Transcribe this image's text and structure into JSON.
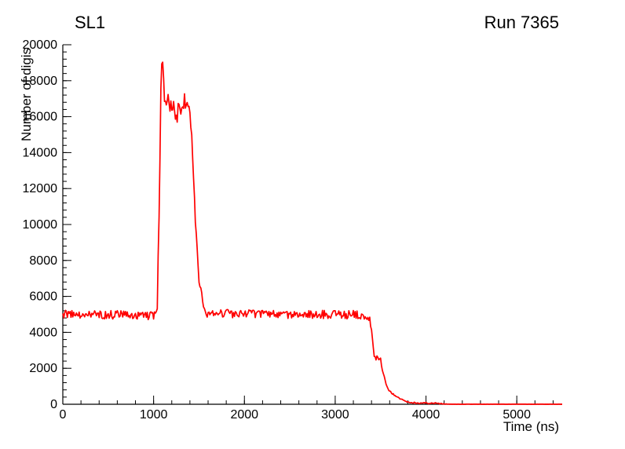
{
  "chart_data": {
    "type": "line",
    "title": "SL1",
    "annotation": "Run 7365",
    "xlabel": "Time (ns)",
    "ylabel": "Number of digis",
    "xlim": [
      0,
      5500
    ],
    "ylim": [
      0,
      20000
    ],
    "x_major_ticks": [
      0,
      1000,
      2000,
      3000,
      4000,
      5000
    ],
    "y_major_ticks": [
      0,
      2000,
      4000,
      6000,
      8000,
      10000,
      12000,
      14000,
      16000,
      18000,
      20000
    ],
    "x_minor_step": 200,
    "y_minor_step": 400,
    "grid": false,
    "legend": false,
    "line_color": "#ff0000",
    "axis_color": "#000000",
    "background_color": "#ffffff",
    "noise_seed": 20257365,
    "sample_step_ns": 10,
    "profile_points": [
      [
        0,
        5000,
        240
      ],
      [
        1000,
        4950,
        240
      ],
      [
        1040,
        5200,
        300
      ],
      [
        1062,
        11000,
        1200
      ],
      [
        1080,
        18000,
        600
      ],
      [
        1094,
        19550,
        150
      ],
      [
        1108,
        17700,
        500
      ],
      [
        1140,
        16500,
        700
      ],
      [
        1180,
        17000,
        700
      ],
      [
        1230,
        16100,
        700
      ],
      [
        1280,
        16300,
        700
      ],
      [
        1330,
        16700,
        600
      ],
      [
        1375,
        16900,
        500
      ],
      [
        1405,
        16200,
        500
      ],
      [
        1435,
        13200,
        600
      ],
      [
        1465,
        9800,
        400
      ],
      [
        1495,
        7200,
        300
      ],
      [
        1535,
        5800,
        250
      ],
      [
        1575,
        5050,
        240
      ],
      [
        3340,
        4980,
        240
      ],
      [
        3385,
        4750,
        200
      ],
      [
        3405,
        3800,
        200
      ],
      [
        3425,
        2850,
        150
      ],
      [
        3445,
        2600,
        130
      ],
      [
        3500,
        2470,
        130
      ],
      [
        3530,
        1700,
        120
      ],
      [
        3565,
        950,
        90
      ],
      [
        3605,
        680,
        80
      ],
      [
        3660,
        470,
        60
      ],
      [
        3720,
        260,
        50
      ],
      [
        3800,
        130,
        40
      ],
      [
        3900,
        60,
        30
      ],
      [
        4040,
        70,
        50
      ],
      [
        4120,
        45,
        40
      ],
      [
        4200,
        12,
        12
      ],
      [
        4300,
        4,
        5
      ],
      [
        5500,
        2,
        2
      ]
    ]
  }
}
